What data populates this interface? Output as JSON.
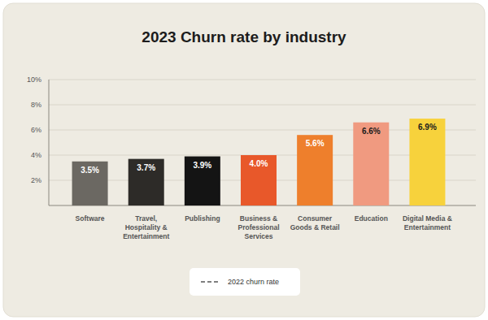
{
  "chart_data": {
    "type": "bar",
    "title": "2023 Churn rate by industry",
    "categories": [
      "Software",
      "Travel, Hospitality & Entertainment",
      "Publishing",
      "Business & Professional Services",
      "Consumer Goods & Retail",
      "Education",
      "Digital Media & Entertainment"
    ],
    "values": [
      3.5,
      3.7,
      3.9,
      4.0,
      5.6,
      6.6,
      6.9
    ],
    "value_labels": [
      "3.5%",
      "3.7%",
      "3.9%",
      "4.0%",
      "5.6%",
      "6.6%",
      "6.9%"
    ],
    "colors": [
      "#6b6862",
      "#2d2b28",
      "#141414",
      "#e8582a",
      "#ee7f2c",
      "#f09a80",
      "#f7d23c"
    ],
    "series": [
      {
        "name": "2022 churn rate",
        "type": "line",
        "line_style": "dashed",
        "color": "#555555",
        "values": [
          null,
          null,
          null,
          null,
          null,
          null,
          null
        ]
      }
    ],
    "ylim": [
      0,
      10
    ],
    "yticks": [
      {
        "value": 2,
        "label": "2%"
      },
      {
        "value": 4,
        "label": "4%"
      },
      {
        "value": 6,
        "label": "6%"
      },
      {
        "value": 8,
        "label": "8%"
      },
      {
        "value": 10,
        "label": "10%"
      }
    ],
    "grid": true,
    "data_labels": true,
    "legend": "bottom"
  }
}
